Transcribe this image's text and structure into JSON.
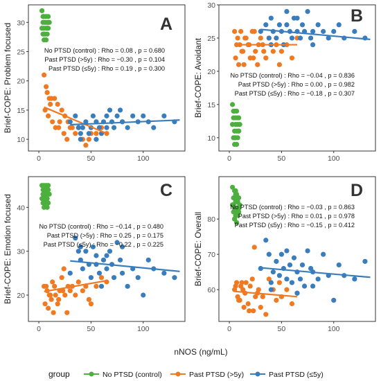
{
  "colors": {
    "No PTSD (control)": "#4daf3e",
    "Past PTSD (>5y)": "#f07a22",
    "Past PTSD (≤5y)": "#3a7dbd"
  },
  "legend": {
    "title": "group",
    "items": [
      "No PTSD (control)",
      "Past PTSD (>5y)",
      "Past PTSD (≤5y)"
    ]
  },
  "shared_xlabel": "nNOS (ng/mL)",
  "chart_data": [
    {
      "panel": "A",
      "type": "scatter",
      "ylabel": "Brief-COPE: Problem focused",
      "xlim": [
        -10,
        140
      ],
      "ylim": [
        8,
        33
      ],
      "xticks": [
        0,
        50,
        100
      ],
      "yticks": [
        10,
        15,
        20,
        25,
        30
      ],
      "grid": false,
      "stats": [
        "No PTSD (control) : Rho = 0.08 , p = 0.680",
        "Past PTSD (>5y) : Rho = −0.30 , p = 0.104",
        "Past PTSD (≤5y) : Rho = 0.19 , p = 0.300"
      ],
      "series": [
        {
          "group": "No PTSD (control)",
          "x": [
            3,
            5,
            7,
            9,
            4,
            6,
            8,
            10,
            3,
            5,
            7,
            9,
            4,
            6,
            8,
            5,
            7,
            6,
            4,
            8,
            9,
            5
          ],
          "y": [
            32,
            31,
            31,
            30,
            30,
            30,
            30,
            30,
            29,
            29,
            29,
            29,
            28,
            28,
            28,
            27,
            27,
            30,
            31,
            29,
            31,
            28
          ]
        },
        {
          "group": "Past PTSD (>5y)",
          "x": [
            5,
            8,
            10,
            12,
            15,
            18,
            20,
            22,
            25,
            28,
            30,
            6,
            9,
            13,
            16,
            19,
            24,
            27,
            32,
            35,
            38,
            42,
            45,
            48,
            50,
            55,
            60,
            65,
            7,
            11
          ],
          "y": [
            21,
            18,
            17,
            17,
            17,
            16,
            13,
            15,
            14,
            13,
            12,
            15,
            14,
            13,
            12,
            12,
            11,
            10,
            12,
            11,
            12,
            10,
            9,
            10,
            11,
            11,
            12,
            11,
            19,
            16
          ]
        },
        {
          "group": "Past PTSD (≤5y)",
          "x": [
            30,
            35,
            38,
            40,
            42,
            45,
            48,
            50,
            52,
            55,
            58,
            60,
            62,
            65,
            68,
            70,
            72,
            75,
            78,
            80,
            85,
            90,
            95,
            100,
            105,
            110,
            120,
            130,
            40,
            55,
            65,
            80
          ],
          "y": [
            13,
            14,
            12,
            11,
            12,
            13,
            11,
            12,
            14,
            13,
            12,
            11,
            13,
            14,
            15,
            13,
            12,
            14,
            15,
            13,
            12,
            14,
            13,
            14,
            13,
            12,
            14,
            13,
            10,
            10,
            12,
            13
          ]
        },
        {
          "group": "No PTSD (control)",
          "fit": true,
          "x": [
            3,
            10
          ],
          "y": [
            29.8,
            30.0
          ]
        },
        {
          "group": "Past PTSD (>5y)",
          "fit": true,
          "x": [
            5,
            65
          ],
          "y": [
            15.5,
            11.0
          ]
        },
        {
          "group": "Past PTSD (≤5y)",
          "fit": true,
          "x": [
            30,
            135
          ],
          "y": [
            12.5,
            13.3
          ]
        }
      ]
    },
    {
      "panel": "B",
      "type": "scatter",
      "ylabel": "Brief-COPE: Avoidant",
      "xlim": [
        -10,
        140
      ],
      "ylim": [
        8,
        30
      ],
      "xticks": [
        0,
        50,
        100
      ],
      "yticks": [
        10,
        15,
        20,
        25,
        30
      ],
      "grid": false,
      "stats": [
        "No PTSD (control) : Rho = −0.04 , p = 0.836",
        "Past PTSD (>5y) : Rho = 0.00 , p = 0.982",
        "Past PTSD (≤5y) : Rho = −0.18 , p = 0.307"
      ],
      "series": [
        {
          "group": "No PTSD (control)",
          "x": [
            3,
            5,
            7,
            9,
            4,
            6,
            8,
            10,
            3,
            5,
            7,
            9,
            4,
            6,
            8,
            5,
            7,
            6,
            4,
            8,
            9,
            5
          ],
          "y": [
            15,
            14,
            14,
            13,
            13,
            13,
            12,
            12,
            12,
            11,
            11,
            11,
            10,
            10,
            10,
            9,
            9,
            12,
            14,
            13,
            11,
            10
          ]
        },
        {
          "group": "Past PTSD (>5y)",
          "x": [
            5,
            8,
            10,
            12,
            15,
            18,
            20,
            22,
            25,
            28,
            30,
            6,
            9,
            13,
            16,
            19,
            24,
            27,
            32,
            35,
            38,
            42,
            45,
            48,
            50,
            55,
            60,
            65,
            7,
            11,
            14,
            23,
            33
          ],
          "y": [
            26,
            25,
            24,
            23,
            25,
            24,
            22,
            26,
            23,
            24,
            25,
            22,
            21,
            23,
            25,
            24,
            26,
            21,
            24,
            22,
            25,
            23,
            24,
            21,
            23,
            24,
            22,
            25,
            24,
            26,
            21,
            22,
            23
          ]
        },
        {
          "group": "Past PTSD (≤5y)",
          "x": [
            30,
            35,
            38,
            40,
            42,
            45,
            48,
            50,
            52,
            55,
            58,
            60,
            62,
            65,
            68,
            70,
            72,
            75,
            78,
            80,
            85,
            90,
            95,
            100,
            105,
            110,
            120,
            130,
            40,
            55,
            65,
            80
          ],
          "y": [
            26,
            27,
            25,
            28,
            26,
            25,
            27,
            26,
            24,
            27,
            26,
            25,
            28,
            26,
            25,
            27,
            26,
            29,
            25,
            26,
            27,
            26,
            25,
            26,
            27,
            25,
            26,
            25,
            24,
            29,
            28,
            24
          ]
        },
        {
          "group": "No PTSD (control)",
          "fit": true,
          "x": [
            3,
            10
          ],
          "y": [
            12.0,
            12.0
          ]
        },
        {
          "group": "Past PTSD (>5y)",
          "fit": true,
          "x": [
            5,
            65
          ],
          "y": [
            24.0,
            24.0
          ]
        },
        {
          "group": "Past PTSD (≤5y)",
          "fit": true,
          "x": [
            30,
            135
          ],
          "y": [
            26.3,
            24.8
          ]
        }
      ]
    },
    {
      "panel": "C",
      "type": "scatter",
      "ylabel": "Brief-COPE: Emotion focused",
      "xlim": [
        -10,
        140
      ],
      "ylim": [
        14,
        47
      ],
      "xticks": [
        0,
        50,
        100
      ],
      "yticks": [
        20,
        30,
        40
      ],
      "grid": false,
      "stats": [
        "No PTSD (control) : Rho = −0.14 , p = 0.480",
        "Past PTSD (>5y) : Rho = 0.25 , p = 0.175",
        "Past PTSD (≤5y) : Rho = −0.22 , p = 0.225"
      ],
      "series": [
        {
          "group": "No PTSD (control)",
          "x": [
            3,
            5,
            7,
            9,
            4,
            6,
            8,
            10,
            3,
            5,
            7,
            9,
            4,
            6,
            8,
            5,
            7,
            6,
            4,
            8,
            9,
            5
          ],
          "y": [
            45,
            45,
            44,
            44,
            44,
            43,
            43,
            43,
            42,
            42,
            42,
            41,
            41,
            41,
            40,
            40,
            45,
            44,
            43,
            42,
            45,
            41
          ]
        },
        {
          "group": "Past PTSD (>5y)",
          "x": [
            5,
            8,
            10,
            12,
            15,
            18,
            20,
            22,
            25,
            28,
            30,
            6,
            9,
            13,
            16,
            19,
            24,
            27,
            32,
            35,
            38,
            42,
            45,
            48,
            50,
            55,
            60,
            65,
            7,
            11,
            14,
            23
          ],
          "y": [
            22,
            21,
            20,
            19,
            22,
            18,
            21,
            24,
            20,
            22,
            21,
            18,
            17,
            23,
            20,
            19,
            26,
            16,
            22,
            20,
            23,
            21,
            22,
            19,
            18,
            22,
            24,
            23,
            22,
            20,
            16,
            21
          ]
        },
        {
          "group": "Past PTSD (≤5y)",
          "x": [
            30,
            35,
            38,
            40,
            42,
            45,
            48,
            50,
            52,
            55,
            58,
            60,
            62,
            65,
            68,
            70,
            72,
            75,
            78,
            80,
            85,
            90,
            95,
            100,
            105,
            110,
            120,
            130,
            40,
            55,
            65,
            80
          ],
          "y": [
            25,
            33,
            30,
            28,
            26,
            30,
            27,
            24,
            31,
            29,
            25,
            22,
            28,
            26,
            30,
            27,
            24,
            32,
            28,
            25,
            22,
            26,
            24,
            20,
            28,
            26,
            25,
            24,
            31,
            27,
            29,
            31
          ]
        },
        {
          "group": "No PTSD (control)",
          "fit": true,
          "x": [
            3,
            10
          ],
          "y": [
            43.2,
            42.8
          ]
        },
        {
          "group": "Past PTSD (>5y)",
          "fit": true,
          "x": [
            5,
            65
          ],
          "y": [
            20.8,
            23.3
          ]
        },
        {
          "group": "Past PTSD (≤5y)",
          "fit": true,
          "x": [
            30,
            135
          ],
          "y": [
            27.8,
            25.4
          ]
        }
      ]
    },
    {
      "panel": "D",
      "type": "scatter",
      "ylabel": "Brief-COPE: Overall",
      "xlim": [
        -10,
        140
      ],
      "ylim": [
        51,
        92
      ],
      "xticks": [
        0,
        50,
        100
      ],
      "yticks": [
        60,
        70,
        80
      ],
      "grid": false,
      "stats": [
        "No PTSD (control) : Rho = −0.03 , p = 0.863",
        "Past PTSD (>5y) : Rho = 0.01 , p = 0.978",
        "Past PTSD (≤5y) : Rho = −0.15 , p = 0.412"
      ],
      "series": [
        {
          "group": "No PTSD (control)",
          "x": [
            3,
            5,
            7,
            9,
            4,
            6,
            8,
            10,
            3,
            5,
            7,
            9,
            4,
            6,
            8,
            5,
            7,
            6,
            4,
            8,
            9,
            5,
            6,
            7
          ],
          "y": [
            89,
            88,
            87,
            86,
            86,
            85,
            85,
            84,
            84,
            83,
            83,
            82,
            82,
            81,
            81,
            80,
            79,
            87,
            84,
            86,
            83,
            80,
            88,
            82
          ]
        },
        {
          "group": "Past PTSD (>5y)",
          "x": [
            5,
            8,
            10,
            12,
            15,
            18,
            20,
            22,
            25,
            28,
            30,
            6,
            9,
            13,
            16,
            19,
            24,
            27,
            32,
            35,
            38,
            42,
            45,
            48,
            50,
            55,
            60,
            65,
            7,
            11,
            14,
            23
          ],
          "y": [
            60,
            58,
            57,
            62,
            59,
            56,
            61,
            63,
            58,
            60,
            55,
            61,
            57,
            60,
            62,
            54,
            72,
            59,
            58,
            53,
            63,
            60,
            57,
            62,
            58,
            60,
            56,
            59,
            62,
            61,
            55,
            54
          ]
        },
        {
          "group": "Past PTSD (≤5y)",
          "x": [
            30,
            35,
            38,
            40,
            42,
            45,
            48,
            50,
            52,
            55,
            58,
            60,
            62,
            65,
            68,
            70,
            72,
            75,
            78,
            80,
            85,
            90,
            95,
            100,
            105,
            110,
            120,
            130,
            40,
            55,
            65,
            80
          ],
          "y": [
            66,
            74,
            70,
            62,
            65,
            68,
            64,
            70,
            66,
            63,
            67,
            62,
            69,
            65,
            63,
            67,
            61,
            71,
            66,
            65,
            63,
            70,
            64,
            57,
            67,
            64,
            63,
            68,
            60,
            71,
            59,
            61
          ]
        },
        {
          "group": "No PTSD (control)",
          "fit": true,
          "x": [
            3,
            10
          ],
          "y": [
            84.5,
            84.3
          ]
        },
        {
          "group": "Past PTSD (>5y)",
          "fit": true,
          "x": [
            5,
            65
          ],
          "y": [
            59.5,
            58.0
          ]
        },
        {
          "group": "Past PTSD (≤5y)",
          "fit": true,
          "x": [
            30,
            135
          ],
          "y": [
            66.2,
            63.5
          ]
        }
      ]
    }
  ]
}
